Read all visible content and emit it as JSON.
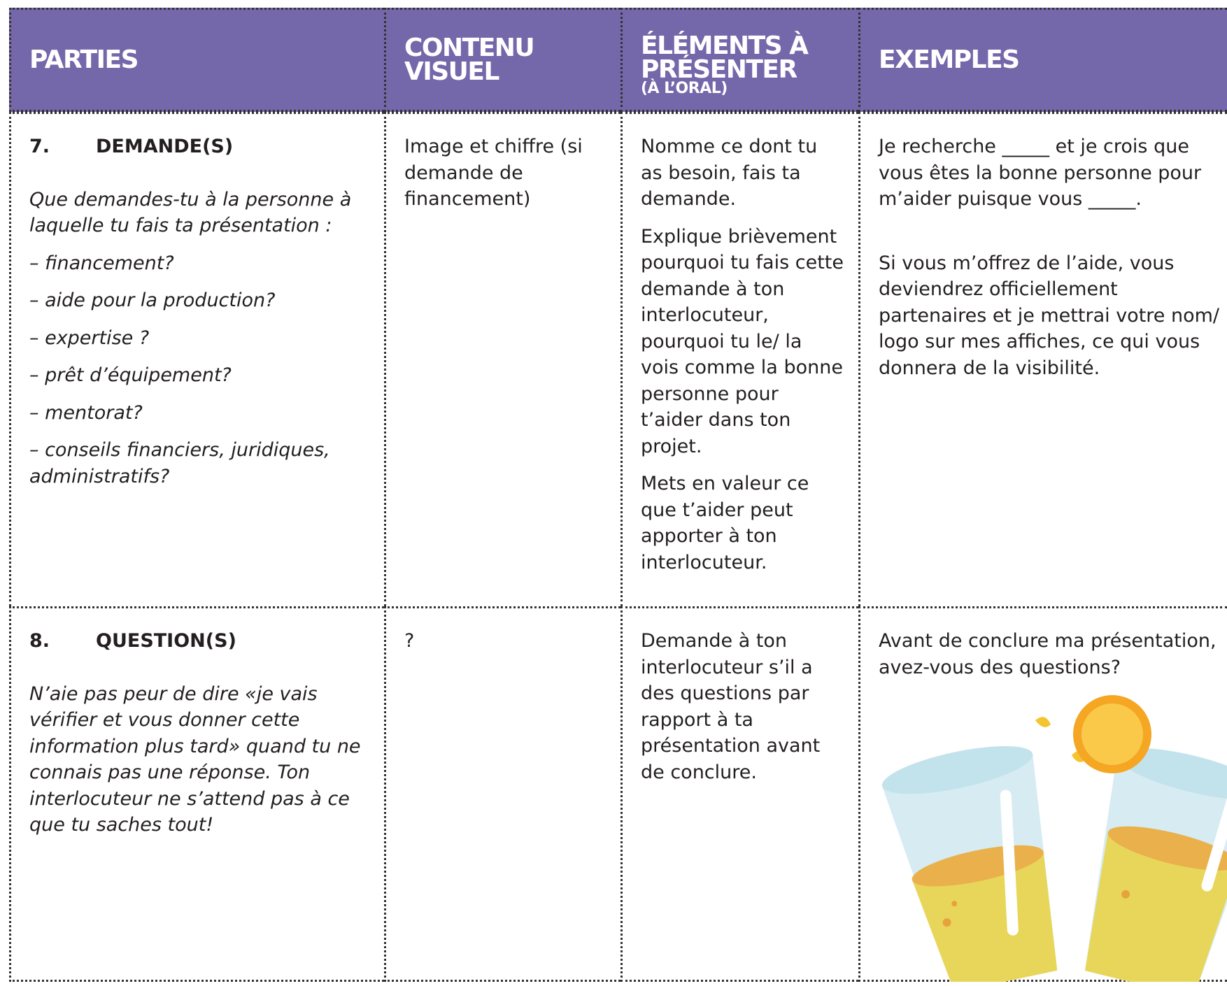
{
  "header": {
    "columns": [
      {
        "title": "PARTIES"
      },
      {
        "title": "CONTENU VISUEL"
      },
      {
        "title": "ÉLÉMENTS À PRÉSENTER",
        "note": "(À L’ORAL)"
      },
      {
        "title": "EXEMPLES"
      }
    ]
  },
  "rows": [
    {
      "number": "7.",
      "title": "DEMANDE(S)",
      "prompt": "Que demandes-tu à la personne à laquelle tu fais ta présentation :",
      "options": [
        "– financement?",
        "– aide pour la production?",
        "– expertise ?",
        "– prêt d’équipement?",
        "– mentorat?",
        "– conseils financiers, juridiques, administratifs?"
      ],
      "visuel": "Image et chiffre (si demande de financement)",
      "elements": [
        "Nomme ce dont tu as besoin, fais ta demande.",
        "Explique brièvement pourquoi tu fais cette demande à ton interlocuteur, pourquoi tu le/ la vois comme la bonne personne pour t’aider dans ton projet.",
        "Mets en valeur ce que t’aider peut apporter à ton interlocuteur."
      ],
      "exemples": [
        "Je recherche _____ et je crois que vous êtes la bonne personne pour m’aider puisque vous _____.",
        "Si vous m’offrez de l’aide, vous deviendrez officiellement partenaires et je mettrai votre nom/ logo sur mes affiches, ce qui vous donnera de la visibilité."
      ]
    },
    {
      "number": "8.",
      "title": "QUESTION(S)",
      "prompt": "N’aie pas peur de dire «je vais vérifier et vous donner cette information plus tard» quand tu ne connais pas une réponse. Ton interlocuteur ne s’attend pas à ce que tu saches tout!",
      "visuel": "?",
      "elements": [
        "Demande à ton interlocuteur s’il a des questions par rapport à ta présentation avant de conclure."
      ],
      "exemples": [
        "Avant de conclure ma présentation, avez-vous des questions?"
      ]
    }
  ]
}
